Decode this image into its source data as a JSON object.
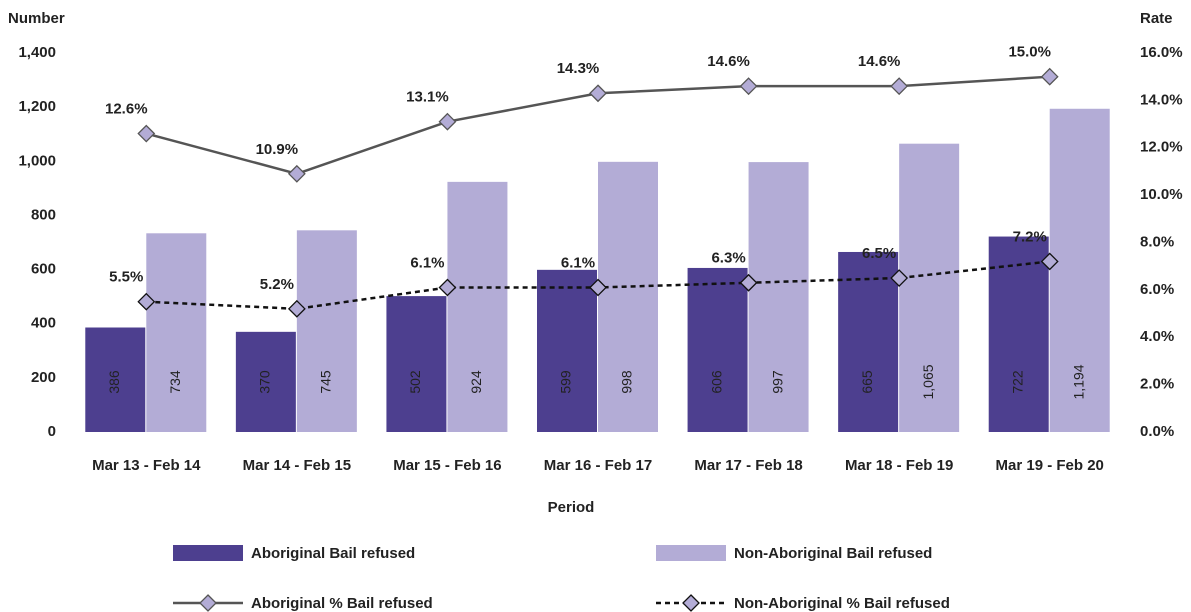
{
  "chart_data": {
    "type": "bar",
    "x_label": "Period",
    "y_label": "Number",
    "y2_label": "Rate",
    "categories": [
      "Mar 13 - Feb 14",
      "Mar 14 - Feb 15",
      "Mar 15 - Feb 16",
      "Mar 16 - Feb 17",
      "Mar 17 - Feb 18",
      "Mar 18 - Feb 19",
      "Mar 19 - Feb 20"
    ],
    "series": [
      {
        "name": "Aboriginal Bail refused",
        "type": "bar",
        "color": "#4d3f8f",
        "label_color": "#ffffff",
        "values": [
          386,
          370,
          502,
          599,
          606,
          665,
          722
        ],
        "value_labels": [
          "386",
          "370",
          "502",
          "599",
          "606",
          "665",
          "722"
        ]
      },
      {
        "name": "Non-Aboriginal Bail refused",
        "type": "bar",
        "color": "#b3acd6",
        "label_color": "#222222",
        "values": [
          734,
          745,
          924,
          998,
          997,
          1065,
          1194
        ],
        "value_labels": [
          "734",
          "745",
          "924",
          "998",
          "997",
          "1,065",
          "1,194"
        ]
      },
      {
        "name": "Aboriginal % Bail refused",
        "type": "line",
        "axis": "y2",
        "color": "#555555",
        "marker_color": "#b3acd6",
        "dashed": false,
        "values": [
          12.6,
          10.9,
          13.1,
          14.3,
          14.6,
          14.6,
          15.0
        ],
        "value_labels": [
          "12.6%",
          "10.9%",
          "13.1%",
          "14.3%",
          "14.6%",
          "14.6%",
          "15.0%"
        ]
      },
      {
        "name": "Non-Aboriginal % Bail refused",
        "type": "line",
        "axis": "y2",
        "color": "#111111",
        "marker_color": "#b3acd6",
        "dashed": true,
        "values": [
          5.5,
          5.2,
          6.1,
          6.1,
          6.3,
          6.5,
          7.2
        ],
        "value_labels": [
          "5.5%",
          "5.2%",
          "6.1%",
          "6.1%",
          "6.3%",
          "6.5%",
          "7.2%"
        ]
      }
    ],
    "ylim": [
      0,
      1400
    ],
    "yticks": [
      0,
      200,
      400,
      600,
      800,
      {
        "value": 1000,
        "label": "1,000"
      },
      {
        "value": 1200,
        "label": "1,200"
      },
      {
        "value": 1400,
        "label": "1,400"
      }
    ],
    "y2lim": [
      0,
      16
    ],
    "y2ticks": [
      {
        "value": 0,
        "label": "0.0%"
      },
      {
        "value": 2,
        "label": "2.0%"
      },
      {
        "value": 4,
        "label": "4.0%"
      },
      {
        "value": 6,
        "label": "6.0%"
      },
      {
        "value": 8,
        "label": "8.0%"
      },
      {
        "value": 10,
        "label": "10.0%"
      },
      {
        "value": 12,
        "label": "12.0%"
      },
      {
        "value": 14,
        "label": "14.0%"
      },
      {
        "value": 16,
        "label": "16.0%"
      }
    ],
    "grid": false,
    "legend": "bottom"
  }
}
